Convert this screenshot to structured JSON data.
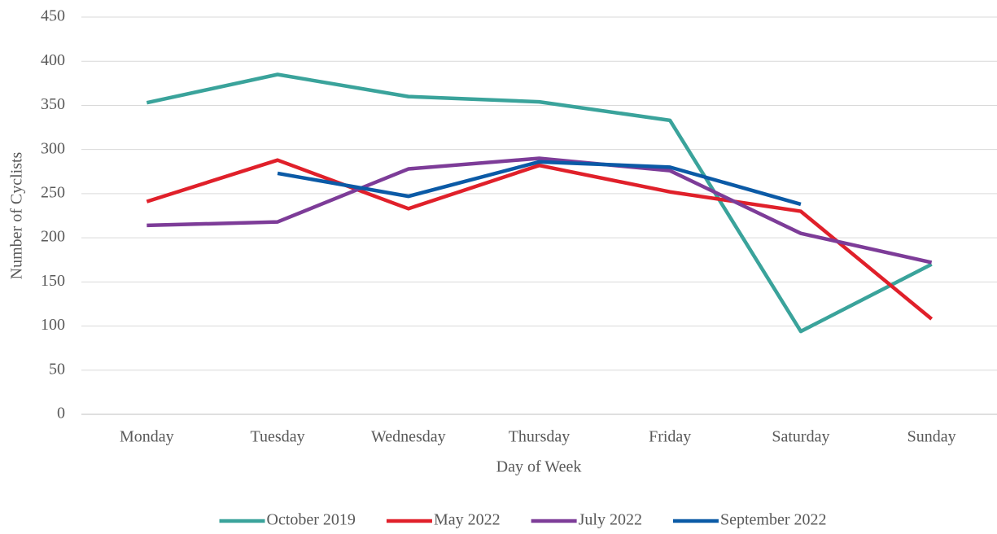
{
  "chart_data": {
    "type": "line",
    "x_label": "Day of Week",
    "y_label": "Number of Cyclists",
    "categories": [
      "Monday",
      "Tuesday",
      "Wednesday",
      "Thursday",
      "Friday",
      "Saturday",
      "Sunday"
    ],
    "series": [
      {
        "name": "October 2019",
        "color": "#3aa39b",
        "values": [
          353,
          385,
          360,
          354,
          333,
          94,
          170
        ]
      },
      {
        "name": "May 2022",
        "color": "#e0202a",
        "values": [
          241,
          288,
          233,
          282,
          252,
          230,
          108
        ]
      },
      {
        "name": "July 2022",
        "color": "#7d3c98",
        "values": [
          214,
          218,
          278,
          290,
          276,
          205,
          172
        ]
      },
      {
        "name": "September 2022",
        "color": "#0b5aa6",
        "values": [
          null,
          273,
          247,
          286,
          280,
          238,
          null
        ]
      }
    ],
    "ylim": [
      0,
      450
    ],
    "yticks": [
      0,
      50,
      100,
      150,
      200,
      250,
      300,
      350,
      400,
      450
    ],
    "grid": true,
    "legend": "bottom"
  }
}
